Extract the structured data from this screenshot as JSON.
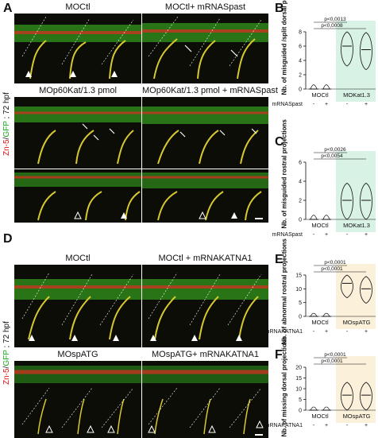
{
  "panels": {
    "A": {
      "letter": "A",
      "side_label": {
        "red": "Zn-5",
        "slash": "/",
        "green": "GFP",
        "rest": " ; 72 hpf"
      },
      "tiles": [
        {
          "title": "MOCtl"
        },
        {
          "title": "MOCtl+ mRNASpast"
        },
        {
          "title": "MOp60Kat/1.3 pmol"
        },
        {
          "title": "MOp60Kat/1.3 pmol + mRNASpast"
        }
      ]
    },
    "D": {
      "letter": "D",
      "side_label": {
        "red": "Zn-5",
        "slash": "/",
        "green": "GFP",
        "rest": " ; 72 hpf"
      },
      "tiles": [
        {
          "title": "MOCtl"
        },
        {
          "title": "MOCtl + mRNAKATNA1"
        },
        {
          "title": "MOspATG"
        },
        {
          "title": "MOspATG+ mRNAKATNA1"
        }
      ]
    },
    "B": {
      "letter": "B",
      "ylabel": "Nb. of misguided /split dorsal projections"
    },
    "C": {
      "letter": "C",
      "ylabel": "Nb. of misguided rostral projections"
    },
    "E": {
      "letter": "E",
      "ylabel": "Nb. of abnormal rostral projections"
    },
    "F": {
      "letter": "F",
      "ylabel": "Nb. of missing dorsal projections"
    }
  },
  "chart_data": [
    {
      "type": "violin",
      "panel": "B",
      "ylim": [
        0,
        8
      ],
      "yticks": [
        "0",
        "2",
        "4",
        "6",
        "8"
      ],
      "groups": [
        "MOCtl",
        "MOKat1.3"
      ],
      "condition_label": "mRNASpast",
      "conditions": [
        "-",
        "+",
        "-",
        "+"
      ],
      "medians": [
        0,
        0,
        6,
        5.5
      ],
      "shaded_group": "MOKat1.3",
      "shade_color": "#d9f2e6",
      "pvalues": [
        "p<0,0013",
        "p<0,0008"
      ]
    },
    {
      "type": "violin",
      "panel": "C",
      "ylim": [
        0,
        6
      ],
      "yticks": [
        "0",
        "2",
        "4",
        "6"
      ],
      "groups": [
        "MOCtl",
        "MOKat1.3"
      ],
      "condition_label": "mRNASpast",
      "conditions": [
        "-",
        "+",
        "-",
        "+"
      ],
      "medians": [
        0,
        0,
        2,
        2
      ],
      "shaded_group": "MOKat1.3",
      "shade_color": "#d9f2e6",
      "pvalues": [
        "p<0,0026",
        "p<0,0054"
      ]
    },
    {
      "type": "violin",
      "panel": "E",
      "ylim": [
        0,
        15
      ],
      "yticks": [
        "0",
        "5",
        "10",
        "15"
      ],
      "groups": [
        "MOCtl",
        "MOspATG"
      ],
      "condition_label": "mRNAKATNA1",
      "conditions": [
        "-",
        "+",
        "-",
        "+"
      ],
      "medians": [
        0,
        0,
        12,
        10
      ],
      "shaded_group": "MOspATG",
      "shade_color": "#fbf0d9",
      "pvalues": [
        "p<0,0001",
        "p<0,0001"
      ]
    },
    {
      "type": "violin",
      "panel": "F",
      "ylim": [
        0,
        20
      ],
      "yticks": [
        "0",
        "5",
        "10",
        "15",
        "20"
      ],
      "groups": [
        "MOCtl",
        "MOspATG"
      ],
      "condition_label": "mRNAKATNA1",
      "conditions": [
        "-",
        "+",
        "-",
        "+"
      ],
      "medians": [
        0,
        0,
        7,
        7
      ],
      "shaded_group": "MOspATG",
      "shade_color": "#fbf0d9",
      "pvalues": [
        "p<0,0001",
        "p<0,0001"
      ]
    }
  ]
}
